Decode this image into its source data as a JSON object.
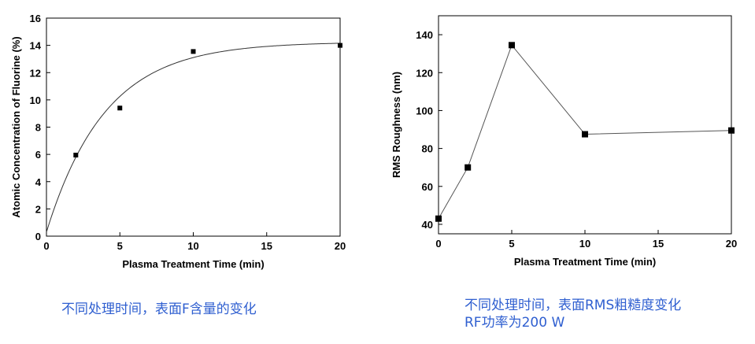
{
  "chart_data": [
    {
      "type": "scatter",
      "title": "",
      "xlabel": "Plasma Treatment Time (min)",
      "ylabel": "Atomic Concentration of Fluorine (%)",
      "xlim": [
        0,
        20
      ],
      "ylim": [
        0,
        16
      ],
      "xticks": [
        0,
        5,
        10,
        15,
        20
      ],
      "yticks": [
        0,
        2,
        4,
        6,
        8,
        10,
        12,
        14,
        16
      ],
      "points": [
        {
          "x": 2,
          "y": 5.95
        },
        {
          "x": 5,
          "y": 9.4
        },
        {
          "x": 10,
          "y": 13.55
        },
        {
          "x": 20,
          "y": 14.0
        }
      ],
      "fit_curve": {
        "type": "exponential-saturation",
        "y_max": 14.25,
        "y0": 0.3,
        "rate": 0.25
      },
      "grid": false
    },
    {
      "type": "line",
      "title": "",
      "xlabel": "Plasma Treatment Time (min)",
      "ylabel": "RMS Roughness (nm)",
      "xlim": [
        0,
        20
      ],
      "ylim": [
        35,
        150
      ],
      "xticks": [
        0,
        5,
        10,
        15,
        20
      ],
      "yticks": [
        40,
        60,
        80,
        100,
        120,
        140
      ],
      "points": [
        {
          "x": 0,
          "y": 43
        },
        {
          "x": 2,
          "y": 70
        },
        {
          "x": 5,
          "y": 134.5
        },
        {
          "x": 10,
          "y": 87.5
        },
        {
          "x": 20,
          "y": 89.5
        }
      ],
      "grid": false
    }
  ],
  "captions": {
    "left": "不同处理时间，表面F含量的变化",
    "right_line1": "不同处理时间，表面RMS粗糙度变化",
    "right_line2": "RF功率为200 W"
  }
}
